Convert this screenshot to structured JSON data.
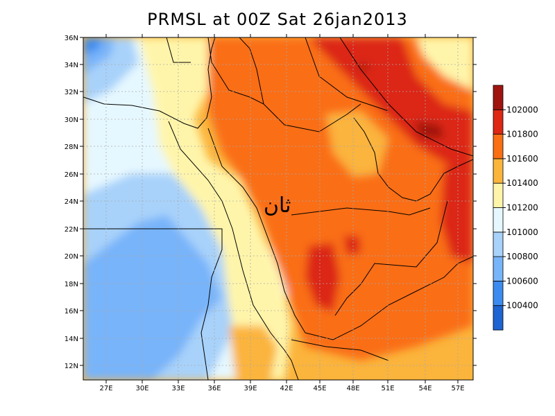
{
  "title": "PRMSL at 00Z Sat 26jan2013",
  "annotation": "ثان",
  "x_axis": {
    "ticks": [
      "27E",
      "30E",
      "33E",
      "36E",
      "39E",
      "42E",
      "45E",
      "48E",
      "51E",
      "54E",
      "57E"
    ]
  },
  "y_axis": {
    "ticks": [
      "12N",
      "14N",
      "16N",
      "18N",
      "20N",
      "22N",
      "24N",
      "26N",
      "28N",
      "30N",
      "32N",
      "34N",
      "36N"
    ]
  },
  "legend": {
    "labels": [
      "100400",
      "100600",
      "100800",
      "101000",
      "101200",
      "101400",
      "101600",
      "101800",
      "102000"
    ],
    "colors": [
      "#1e64d2",
      "#3c8cf0",
      "#78b4fa",
      "#a8d2fa",
      "#e6f8ff",
      "#fff5aa",
      "#fbb43c",
      "#fa6e14",
      "#dc2814",
      "#a01410"
    ]
  },
  "colors": {
    "border": "#000000",
    "grid": "#aaaaaa"
  }
}
